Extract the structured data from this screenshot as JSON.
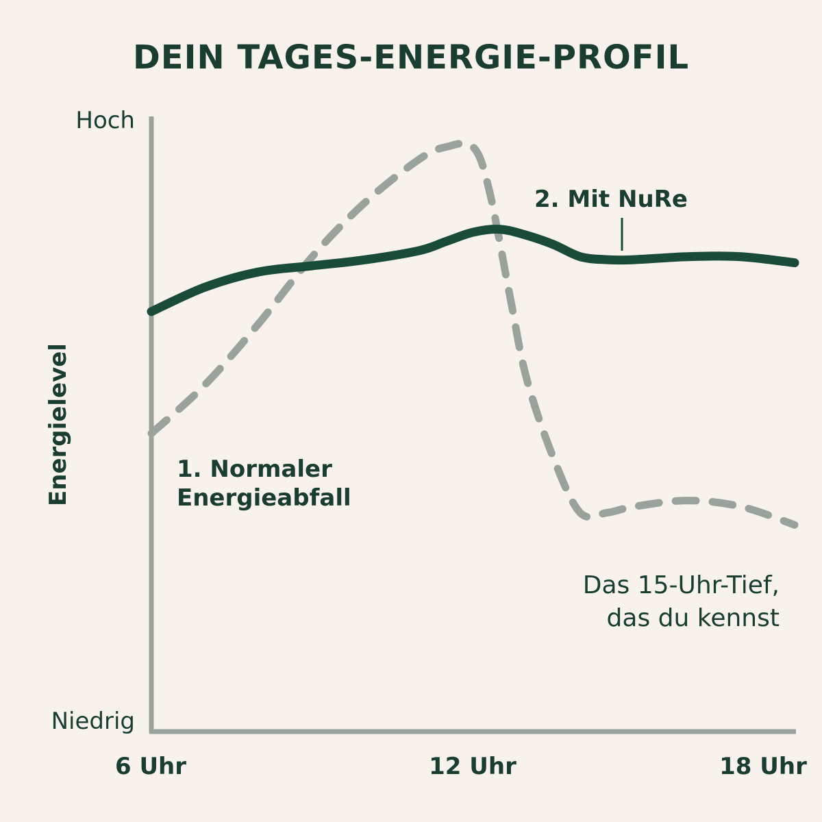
{
  "colors": {
    "background": "#f7f3ec",
    "primary": "#1a4a38",
    "secondary": "#9aa39b",
    "axis": "#9aa39b",
    "text": "#1a3d30"
  },
  "chart_data": {
    "type": "line",
    "title": "DEIN TAGES-ENERGIE-PROFIL",
    "ylabel": "Energielevel",
    "y_level_labels": {
      "high": "Hoch",
      "low": "Niedrig"
    },
    "ylim": [
      0,
      100
    ],
    "xlim": [
      6,
      18
    ],
    "x_ticks": [
      {
        "value": 6,
        "label": "6 Uhr"
      },
      {
        "value": 12,
        "label": "12 Uhr"
      },
      {
        "value": 18,
        "label": "18 Uhr"
      }
    ],
    "series": [
      {
        "name": "1. Normaler Energieabfall",
        "name_lines": [
          "1. Normaler",
          "Energieabfall"
        ],
        "style": "dashed",
        "color": "#9aa39b",
        "x": [
          6,
          7,
          8,
          9,
          10,
          11,
          11.5,
          12,
          12.3,
          12.7,
          13,
          13.5,
          14,
          14.5,
          15,
          16,
          17,
          18
        ],
        "y": [
          48,
          56,
          66,
          77,
          86,
          93,
          95,
          95,
          88,
          70,
          57,
          44,
          35,
          35,
          36,
          37,
          36,
          33
        ]
      },
      {
        "name": "2. Mit NuRe",
        "name_lines": [
          "2. Mit NuRe"
        ],
        "style": "solid",
        "color": "#1a4a38",
        "x": [
          6,
          7,
          8,
          9,
          10,
          11,
          11.5,
          12,
          12.5,
          13,
          13.5,
          14,
          14.5,
          15,
          16,
          17,
          18
        ],
        "y": [
          68,
          72,
          74.5,
          75.5,
          76.5,
          78,
          79.5,
          81,
          81.5,
          80.5,
          79,
          77,
          76.5,
          76.5,
          77,
          77,
          76
        ]
      }
    ],
    "annotations": [
      {
        "text_lines": [
          "Das 15-Uhr-Tief,",
          "das du kennst"
        ]
      }
    ]
  }
}
